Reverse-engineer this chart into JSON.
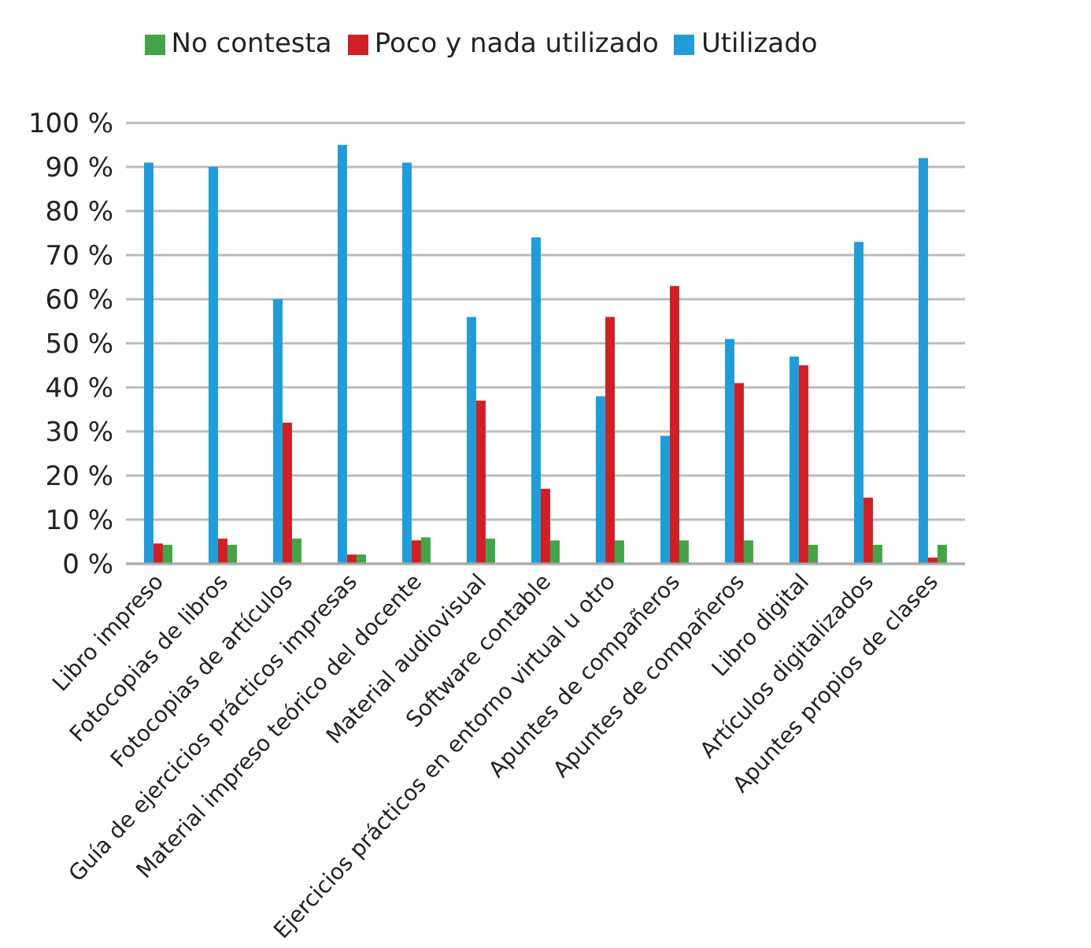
{
  "chart_data": {
    "type": "bar",
    "categories": [
      "Libro impreso",
      "Fotocopias de libros",
      "Fotocopias de artículos",
      "Guía de ejercicios prácticos impresas",
      "Material impreso teórico del docente",
      "Material audiovisual",
      "Software contable",
      "Ejercicios prácticos en entorno virtual u otro",
      "Apuntes de compañeros",
      "Apuntes de compañeros",
      "Libro digital",
      "Artículos digitalizados",
      "Apuntes propios de clases"
    ],
    "series": [
      {
        "name": "Utilizado",
        "color": "#229cd8",
        "values": [
          91,
          90,
          60,
          95,
          91,
          56,
          74,
          38,
          29,
          51,
          47,
          73,
          92
        ]
      },
      {
        "name": "Poco y nada utilizado",
        "color": "#d02027",
        "values": [
          4.6,
          5.7,
          32,
          2.1,
          5.3,
          37,
          17,
          56,
          63,
          41,
          45,
          15,
          1.4
        ]
      },
      {
        "name": "No contesta",
        "color": "#43a548",
        "values": [
          4.3,
          4.3,
          5.7,
          2.1,
          6,
          5.7,
          5.3,
          5.3,
          5.3,
          5.3,
          4.3,
          4.3,
          4.3
        ]
      }
    ],
    "ylim": [
      0,
      100
    ],
    "yticks": [
      {
        "value": 0,
        "label": "0 %"
      },
      {
        "value": 10,
        "label": "10 %"
      },
      {
        "value": 20,
        "label": "20 %"
      },
      {
        "value": 30,
        "label": "30 %"
      },
      {
        "value": 40,
        "label": "40 %"
      },
      {
        "value": 50,
        "label": "50 %"
      },
      {
        "value": 60,
        "label": "60 %"
      },
      {
        "value": 70,
        "label": "70 %"
      },
      {
        "value": 80,
        "label": "80 %"
      },
      {
        "value": 90,
        "label": "90 %"
      },
      {
        "value": 100,
        "label": "100 %"
      }
    ],
    "grid": "y",
    "legend": "top"
  }
}
